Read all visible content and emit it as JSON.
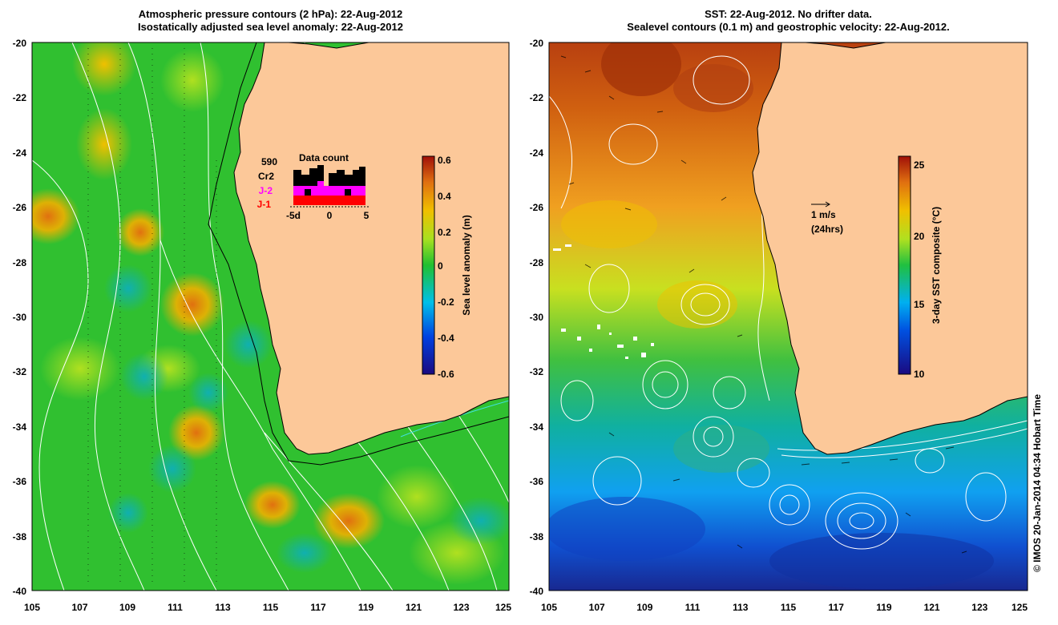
{
  "left_panel": {
    "title_line1": "Atmospheric pressure contours (2 hPa): 22-Aug-2012",
    "title_line2": "Isostatically adjusted sea level anomaly: 22-Aug-2012",
    "x_ticks": [
      "105",
      "107",
      "109",
      "111",
      "113",
      "115",
      "117",
      "119",
      "121",
      "123",
      "125"
    ],
    "y_ticks": [
      "-20",
      "-22",
      "-24",
      "-26",
      "-28",
      "-30",
      "-32",
      "-34",
      "-36",
      "-38",
      "-40"
    ],
    "colorbar": {
      "label": "Sea level anomaly (m)",
      "ticks": [
        "0.6",
        "0.4",
        "0.2",
        "0",
        "-0.2",
        "-0.4",
        "-0.6"
      ],
      "range": [
        -0.6,
        0.6
      ]
    },
    "data_count": {
      "title": "Data count",
      "count": "590",
      "sat1": "Cr2",
      "sat2": "J-2",
      "sat3": "J-1",
      "axis_left": "-5d",
      "axis_mid": "0",
      "axis_right": "5",
      "colors": {
        "cr2": "#000000",
        "j2": "#ff00ff",
        "j1": "#ff0000"
      }
    }
  },
  "right_panel": {
    "title_line1": "SST: 22-Aug-2012. No drifter data.",
    "title_line2": "Sealevel contours (0.1 m) and geostrophic velocity: 22-Aug-2012.",
    "x_ticks": [
      "105",
      "107",
      "109",
      "111",
      "113",
      "115",
      "117",
      "119",
      "121",
      "123",
      "125"
    ],
    "y_ticks": [
      "-20",
      "-22",
      "-24",
      "-26",
      "-28",
      "-30",
      "-32",
      "-34",
      "-36",
      "-38",
      "-40"
    ],
    "colorbar": {
      "label": "3-day SST composite (°C)",
      "ticks": [
        "25",
        "20",
        "15",
        "10"
      ],
      "range": [
        10,
        26
      ]
    },
    "velocity_scale": {
      "label1": "1 m/s",
      "label2": "(24hrs)"
    }
  },
  "copyright": "© IMOS 20-Jan-2014 04:34 Hobart Time",
  "colors": {
    "land": "#fcc899",
    "ocean_mid": "#22c022",
    "coast": "#000000",
    "contour": "#ffffff",
    "bathy": "#40e0e0"
  }
}
